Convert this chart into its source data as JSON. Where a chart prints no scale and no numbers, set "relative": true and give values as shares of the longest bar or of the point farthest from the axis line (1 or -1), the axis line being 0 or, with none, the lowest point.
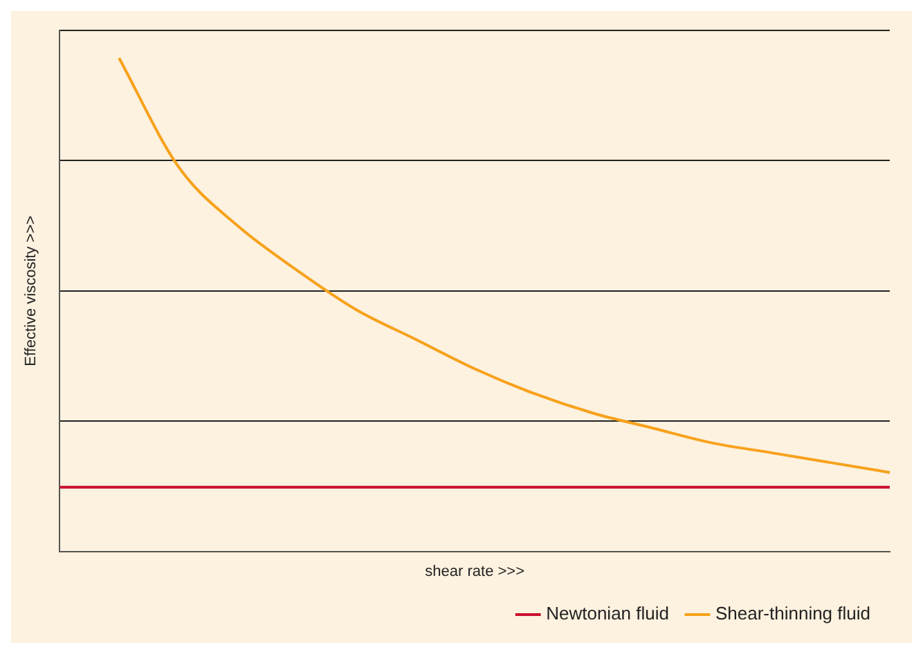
{
  "chart_data": {
    "type": "line",
    "relative": true,
    "xlabel": "shear rate >>>",
    "ylabel": "Effective viscosity >>>",
    "categories": [
      null,
      null,
      null,
      null,
      null,
      null,
      null,
      null,
      null,
      null,
      null,
      null,
      null,
      null,
      null
    ],
    "series": [
      {
        "name": "Newtonian fluid",
        "color": "#c8102e",
        "values": [
          0.13,
          0.13,
          0.13,
          0.13,
          0.13,
          0.13,
          0.13,
          0.13,
          0.13,
          0.13,
          0.13,
          0.13,
          0.13,
          0.13,
          0.13
        ]
      },
      {
        "name": "Shear-thinning fluid",
        "color": "#f7a11a",
        "values": [
          null,
          1,
          0.78,
          0.66,
          0.57,
          0.49,
          0.43,
          0.37,
          0.32,
          0.28,
          0.25,
          0.22,
          0.2,
          0.18,
          0.16
        ]
      }
    ],
    "grid": "y",
    "legend": "bottom right",
    "marker": "none",
    "line_style": "solid"
  }
}
